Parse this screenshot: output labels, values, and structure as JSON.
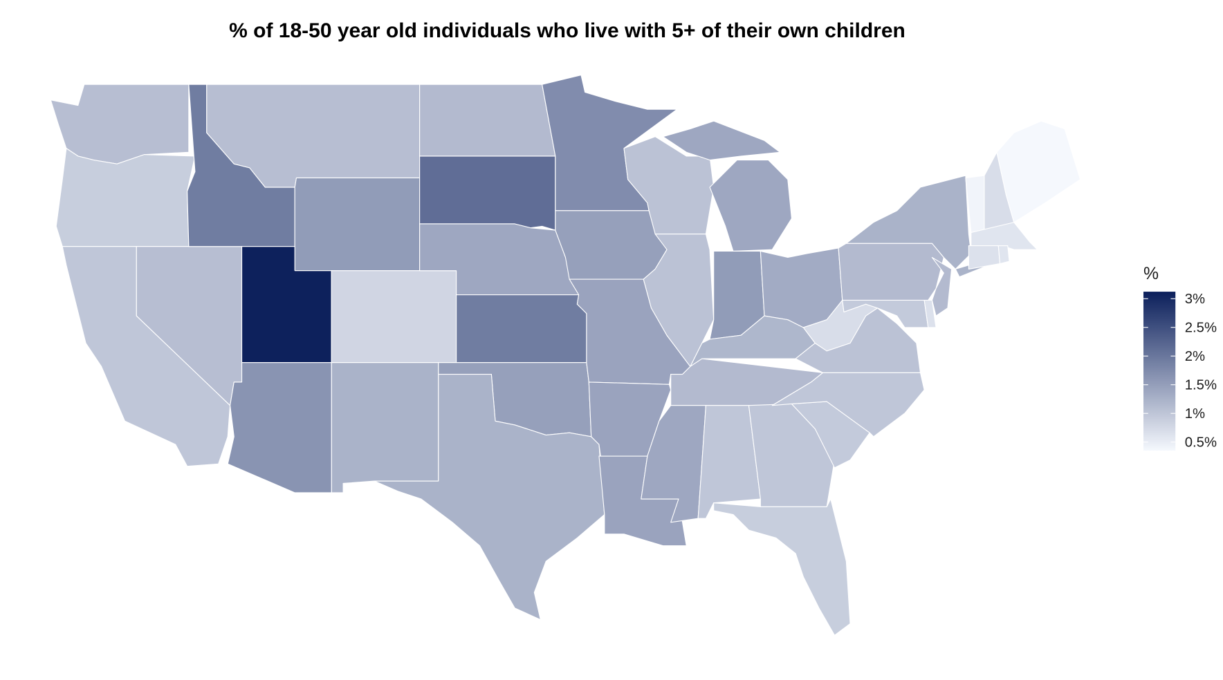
{
  "chart_data": {
    "type": "choropleth",
    "title": "% of 18-50 year old individuals who live with 5+ of their own children",
    "legend": {
      "title": "%",
      "placement": "right",
      "ticks": [
        3,
        2.5,
        2,
        1.5,
        1,
        0.5
      ],
      "tick_labels": [
        "3%",
        "2.5%",
        "2%",
        "1.5%",
        "1%",
        "0.5%"
      ],
      "range": [
        0.3,
        3.12
      ],
      "color_low": "#f5f8fd",
      "color_high": "#0b1f5b"
    },
    "values": {
      "UT": 3.1,
      "SD": 2.1,
      "ID": 1.9,
      "KS": 1.9,
      "MN": 1.7,
      "AZ": 1.6,
      "WY": 1.5,
      "IN": 1.5,
      "IA": 1.45,
      "OK": 1.45,
      "NE": 1.35,
      "MI": 1.35,
      "MS": 1.35,
      "MO": 1.4,
      "AR": 1.4,
      "LA": 1.4,
      "OH": 1.3,
      "TX": 1.2,
      "NM": 1.2,
      "NY": 1.2,
      "ND": 1.1,
      "KY": 1.15,
      "PA": 1.1,
      "TN": 1.1,
      "NJ": 1.1,
      "MT": 1.05,
      "WA": 1.05,
      "NV": 1.05,
      "WI": 1.0,
      "IL": 1.0,
      "VA": 1.0,
      "CA": 0.95,
      "NC": 0.95,
      "GA": 0.95,
      "AL": 0.95,
      "SC": 0.9,
      "OR": 0.85,
      "FL": 0.85,
      "MD": 0.9,
      "CO": 0.75,
      "WV": 0.65,
      "NH": 0.65,
      "CT": 0.6,
      "MA": 0.55,
      "RI": 0.55,
      "DE": 0.6,
      "VT": 0.35,
      "ME": 0.3
    }
  }
}
